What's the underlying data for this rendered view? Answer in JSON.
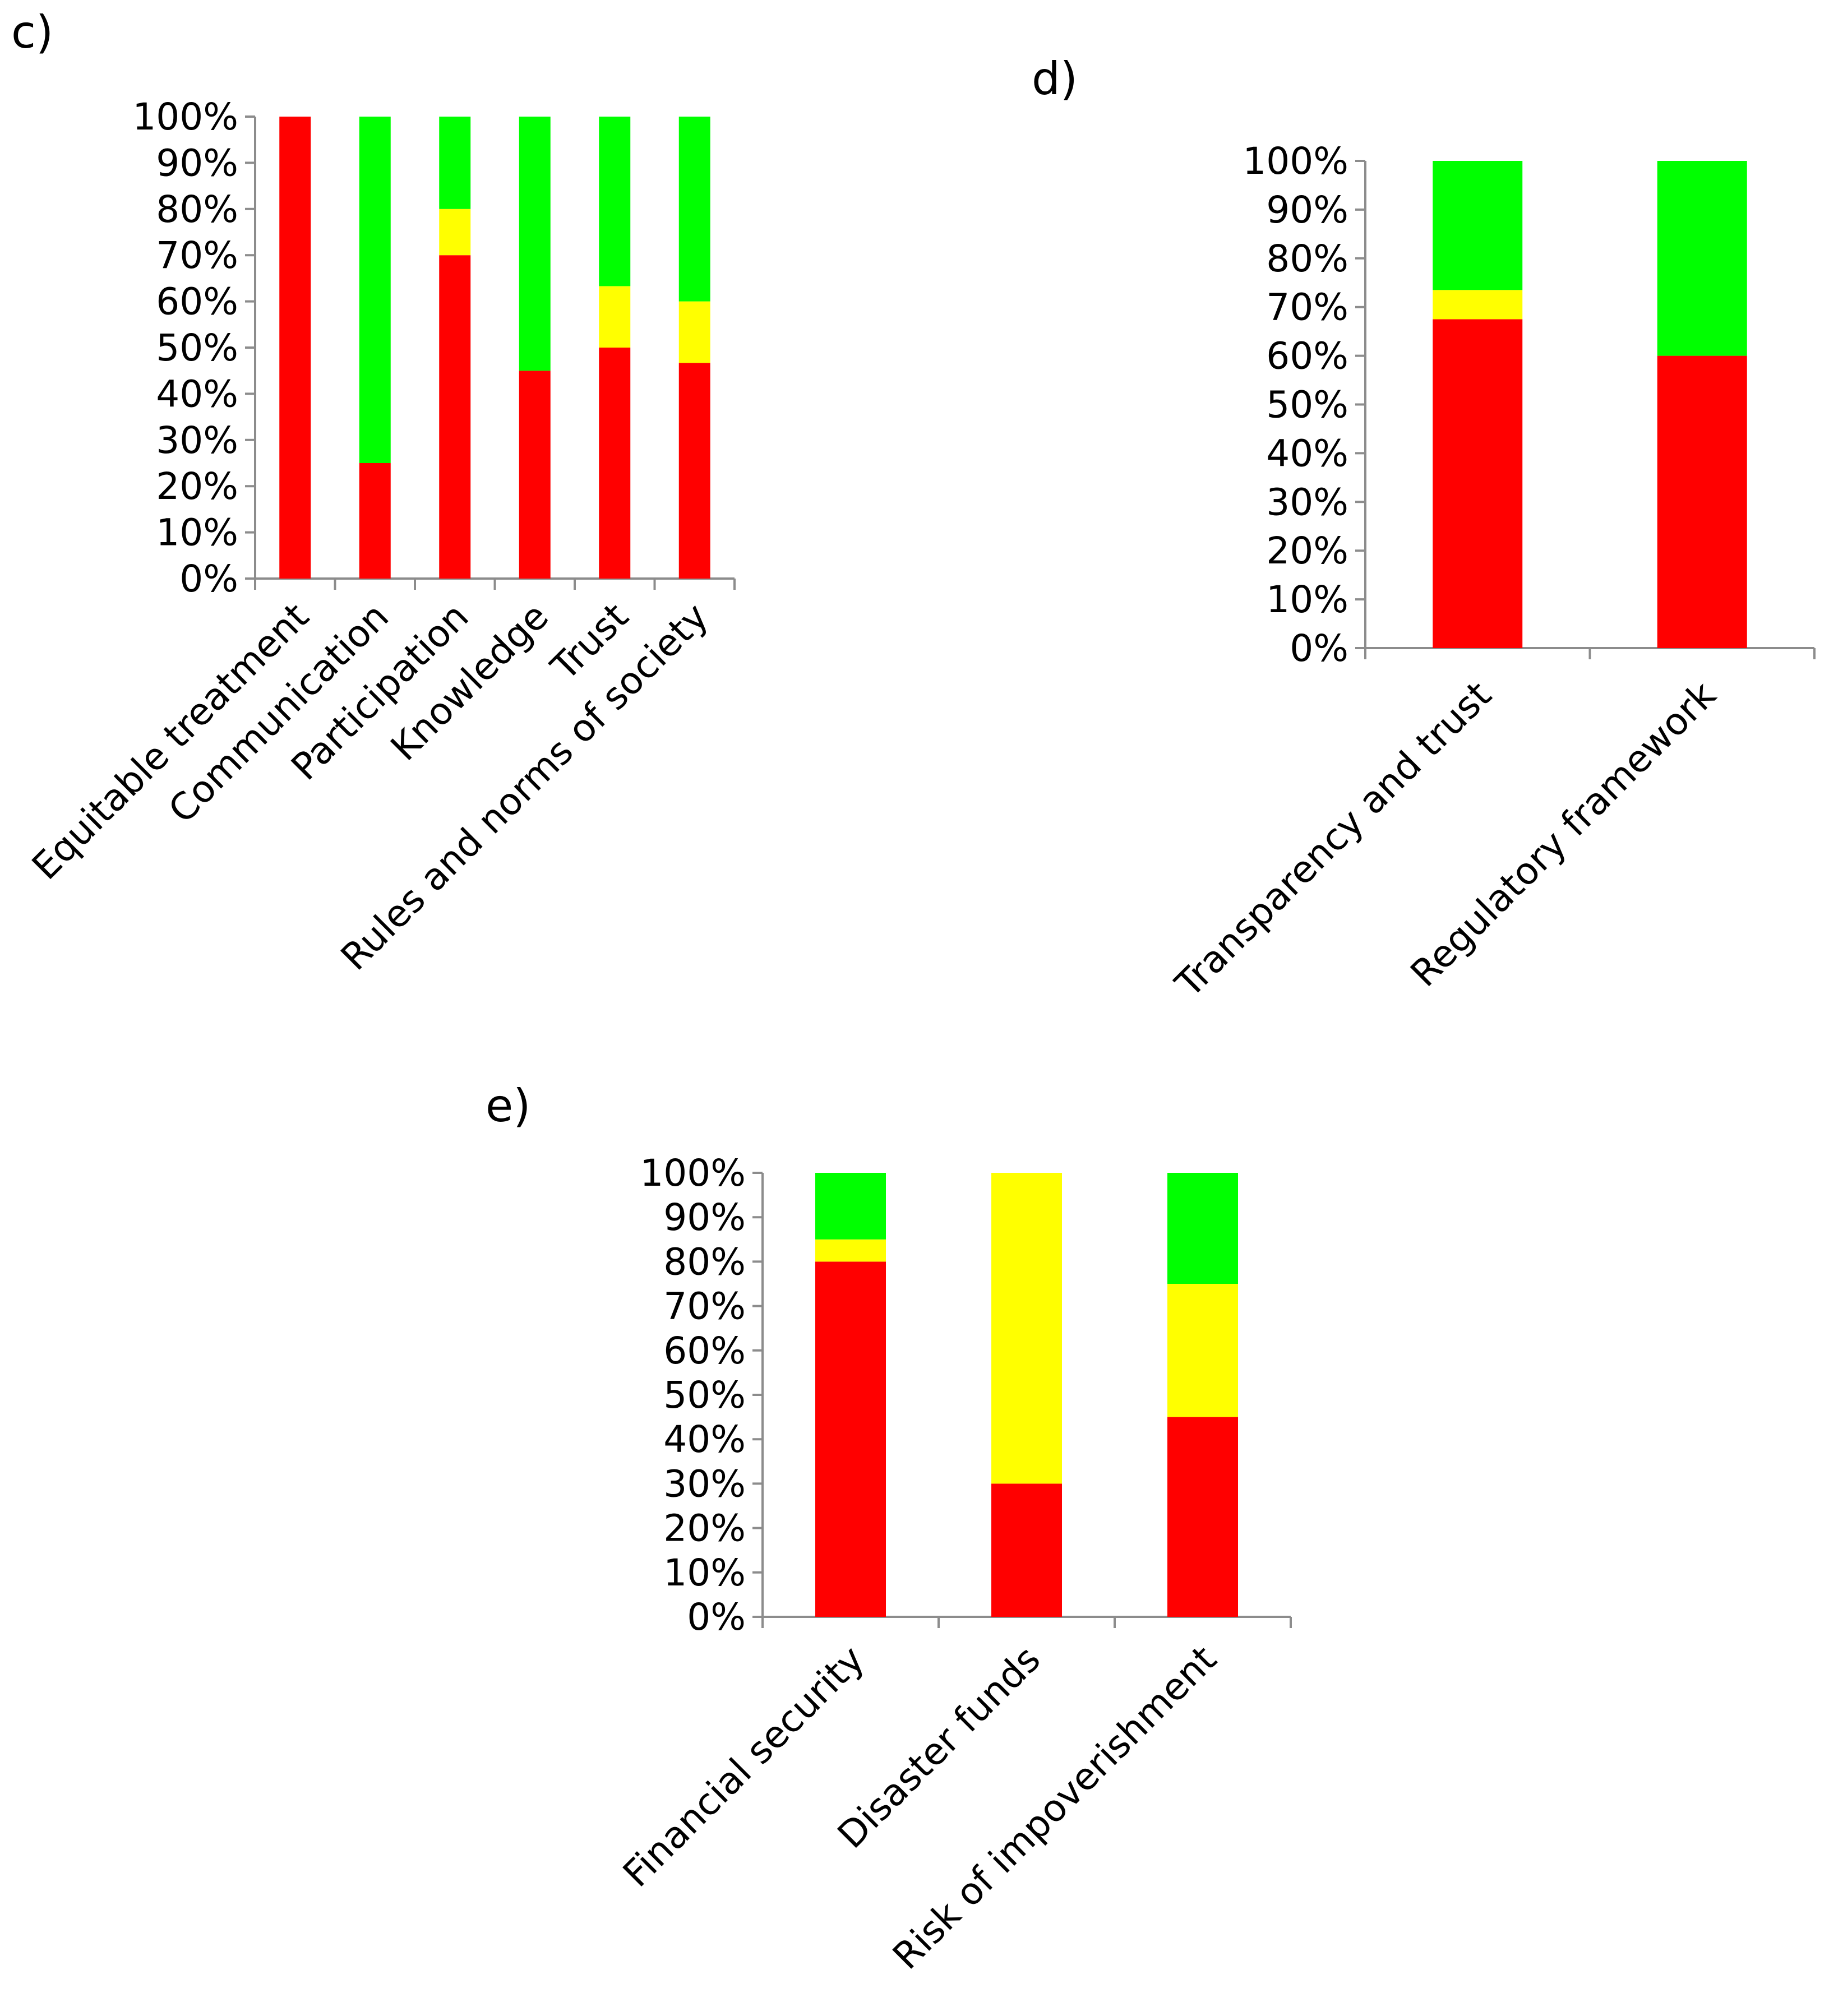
{
  "colors": {
    "red": "#ff0000",
    "yellow": "#ffff00",
    "green": "#00ff00"
  },
  "chart_data": [
    {
      "type": "bar",
      "stacked": true,
      "panel_label": "c)",
      "title": "",
      "xlabel": "",
      "ylabel": "",
      "ylim": [
        0,
        100
      ],
      "yticks": [
        "0%",
        "10%",
        "20%",
        "30%",
        "40%",
        "50%",
        "60%",
        "70%",
        "80%",
        "90%",
        "100%"
      ],
      "categories": [
        "Equitable treatment",
        "Communication",
        "Participation",
        "Knowledge",
        "Trust",
        "Rules and norms of society"
      ],
      "series": [
        {
          "name": "red",
          "values": [
            100,
            25,
            70,
            45,
            50,
            46.7
          ]
        },
        {
          "name": "yellow",
          "values": [
            0,
            0,
            10,
            0,
            13.3,
            13.3
          ]
        },
        {
          "name": "green",
          "values": [
            0,
            75,
            20,
            55,
            36.7,
            40
          ]
        }
      ]
    },
    {
      "type": "bar",
      "stacked": true,
      "panel_label": "d)",
      "title": "",
      "xlabel": "",
      "ylabel": "",
      "ylim": [
        0,
        100
      ],
      "yticks": [
        "0%",
        "10%",
        "20%",
        "30%",
        "40%",
        "50%",
        "60%",
        "70%",
        "80%",
        "90%",
        "100%"
      ],
      "categories": [
        "Transparency and trust",
        "Regulatory framework"
      ],
      "series": [
        {
          "name": "red",
          "values": [
            67.5,
            60
          ]
        },
        {
          "name": "yellow",
          "values": [
            6,
            0
          ]
        },
        {
          "name": "green",
          "values": [
            26.5,
            40
          ]
        }
      ]
    },
    {
      "type": "bar",
      "stacked": true,
      "panel_label": "e)",
      "title": "",
      "xlabel": "",
      "ylabel": "",
      "ylim": [
        0,
        100
      ],
      "yticks": [
        "0%",
        "10%",
        "20%",
        "30%",
        "40%",
        "50%",
        "60%",
        "70%",
        "80%",
        "90%",
        "100%"
      ],
      "categories": [
        "Financial security",
        "Disaster funds",
        "Risk of impoverishment"
      ],
      "series": [
        {
          "name": "red",
          "values": [
            80,
            30,
            45
          ]
        },
        {
          "name": "yellow",
          "values": [
            5,
            70,
            30
          ]
        },
        {
          "name": "green",
          "values": [
            15,
            0,
            25
          ]
        }
      ]
    }
  ]
}
